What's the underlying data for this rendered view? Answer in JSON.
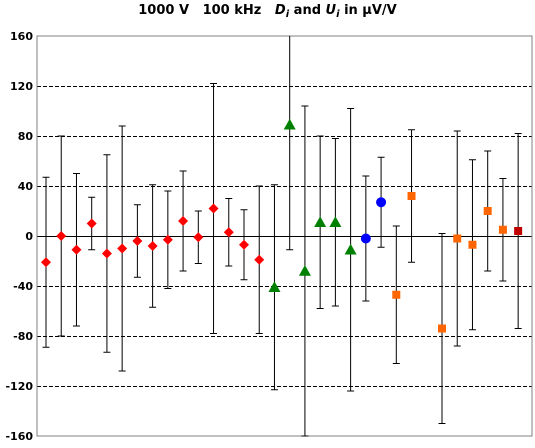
{
  "chart_data": {
    "type": "scatter",
    "title": {
      "part1": "1000 V   100 kHz   ",
      "d_symbol": "D",
      "d_sub": "i",
      "mid": " and ",
      "u_symbol": "U",
      "u_sub": "i",
      "tail": " in μV/V"
    },
    "xlabel": "",
    "ylabel": "",
    "ylim": [
      -160,
      160
    ],
    "yticks": [
      -160,
      -120,
      -80,
      -40,
      0,
      40,
      80,
      120,
      160
    ],
    "grid": "horizontal dashed",
    "legend": "none",
    "x_count": 33,
    "colors": {
      "red": "#ff0000",
      "green": "#008000",
      "blue": "#0000ff",
      "orange": "#ff6600",
      "darkred": "#c00000"
    },
    "points": [
      {
        "x": 1,
        "y": -21,
        "u": 68,
        "marker": "diamond",
        "color": "red"
      },
      {
        "x": 2,
        "y": 0,
        "u": 80,
        "marker": "diamond",
        "color": "red"
      },
      {
        "x": 3,
        "y": -11,
        "u": 61,
        "marker": "diamond",
        "color": "red"
      },
      {
        "x": 4,
        "y": 10,
        "u": 21,
        "marker": "diamond",
        "color": "red"
      },
      {
        "x": 5,
        "y": -14,
        "u": 79,
        "marker": "diamond",
        "color": "red"
      },
      {
        "x": 6,
        "y": -10,
        "u": 98,
        "marker": "diamond",
        "color": "red"
      },
      {
        "x": 7,
        "y": -4,
        "u": 29,
        "marker": "diamond",
        "color": "red"
      },
      {
        "x": 8,
        "y": -8,
        "u": 49,
        "marker": "diamond",
        "color": "red"
      },
      {
        "x": 9,
        "y": -3,
        "u": 39,
        "marker": "diamond",
        "color": "red"
      },
      {
        "x": 10,
        "y": 12,
        "u": 40,
        "marker": "diamond",
        "color": "red"
      },
      {
        "x": 11,
        "y": -1,
        "u": 21,
        "marker": "diamond",
        "color": "red"
      },
      {
        "x": 12,
        "y": 22,
        "u": 100,
        "marker": "diamond",
        "color": "red"
      },
      {
        "x": 13,
        "y": 3,
        "u": 27,
        "marker": "diamond",
        "color": "red"
      },
      {
        "x": 14,
        "y": -7,
        "u": 28,
        "marker": "diamond",
        "color": "red"
      },
      {
        "x": 15,
        "y": -19,
        "u": 59,
        "marker": "diamond",
        "color": "red"
      },
      {
        "x": 16,
        "y": -41,
        "u": 82,
        "marker": "triangle",
        "color": "green"
      },
      {
        "x": 17,
        "y": 89,
        "u": 100,
        "marker": "triangle",
        "color": "green"
      },
      {
        "x": 18,
        "y": -28,
        "u": 132,
        "marker": "triangle",
        "color": "green"
      },
      {
        "x": 19,
        "y": 11,
        "u": 69,
        "marker": "triangle",
        "color": "green"
      },
      {
        "x": 20,
        "y": 11,
        "u": 67,
        "marker": "triangle",
        "color": "green"
      },
      {
        "x": 21,
        "y": -11,
        "u": 113,
        "marker": "triangle",
        "color": "green"
      },
      {
        "x": 22,
        "y": -2,
        "u": 50,
        "marker": "circle",
        "color": "blue"
      },
      {
        "x": 23,
        "y": 27,
        "u": 36,
        "marker": "circle",
        "color": "blue"
      },
      {
        "x": 24,
        "y": -47,
        "u": 55,
        "marker": "square",
        "color": "orange"
      },
      {
        "x": 25,
        "y": 32,
        "u": 53,
        "marker": "square",
        "color": "orange"
      },
      {
        "x": 27,
        "y": -74,
        "u": 76,
        "marker": "square",
        "color": "orange"
      },
      {
        "x": 28,
        "y": -2,
        "u": 86,
        "marker": "square",
        "color": "orange"
      },
      {
        "x": 29,
        "y": -7,
        "u": 68,
        "marker": "square",
        "color": "orange"
      },
      {
        "x": 30,
        "y": 20,
        "u": 48,
        "marker": "square",
        "color": "orange"
      },
      {
        "x": 31,
        "y": 5,
        "u": 41,
        "marker": "square",
        "color": "orange"
      },
      {
        "x": 32,
        "y": 4,
        "u": 78,
        "marker": "square",
        "color": "darkred"
      }
    ]
  }
}
